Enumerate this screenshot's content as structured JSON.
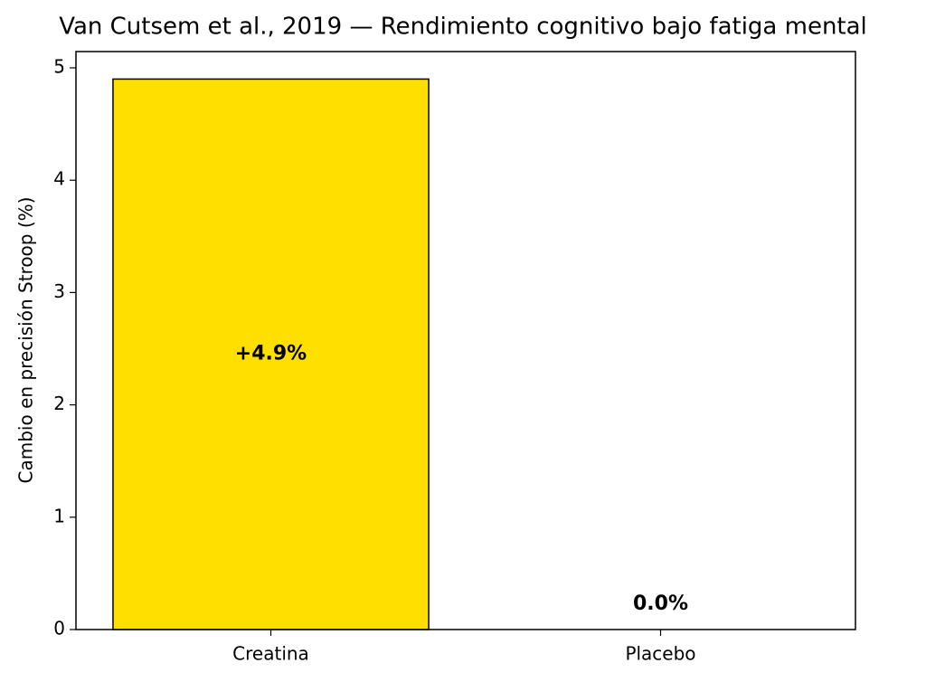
{
  "chart_data": {
    "type": "bar",
    "title": "Van Cutsem et al., 2019 — Rendimiento cognitivo bajo fatiga mental",
    "y_label": "Cambio en precisión Stroop (%)",
    "categories": [
      "Creatina",
      "Placebo"
    ],
    "values": [
      4.9,
      0.0
    ],
    "value_labels": [
      "+4.9%",
      "0.0%"
    ],
    "colors": [
      "#ffdf00",
      "#ffdf00"
    ],
    "ylim": [
      0,
      5.145
    ],
    "yticks": [
      0,
      1,
      2,
      3,
      4,
      5
    ],
    "grid": false
  }
}
